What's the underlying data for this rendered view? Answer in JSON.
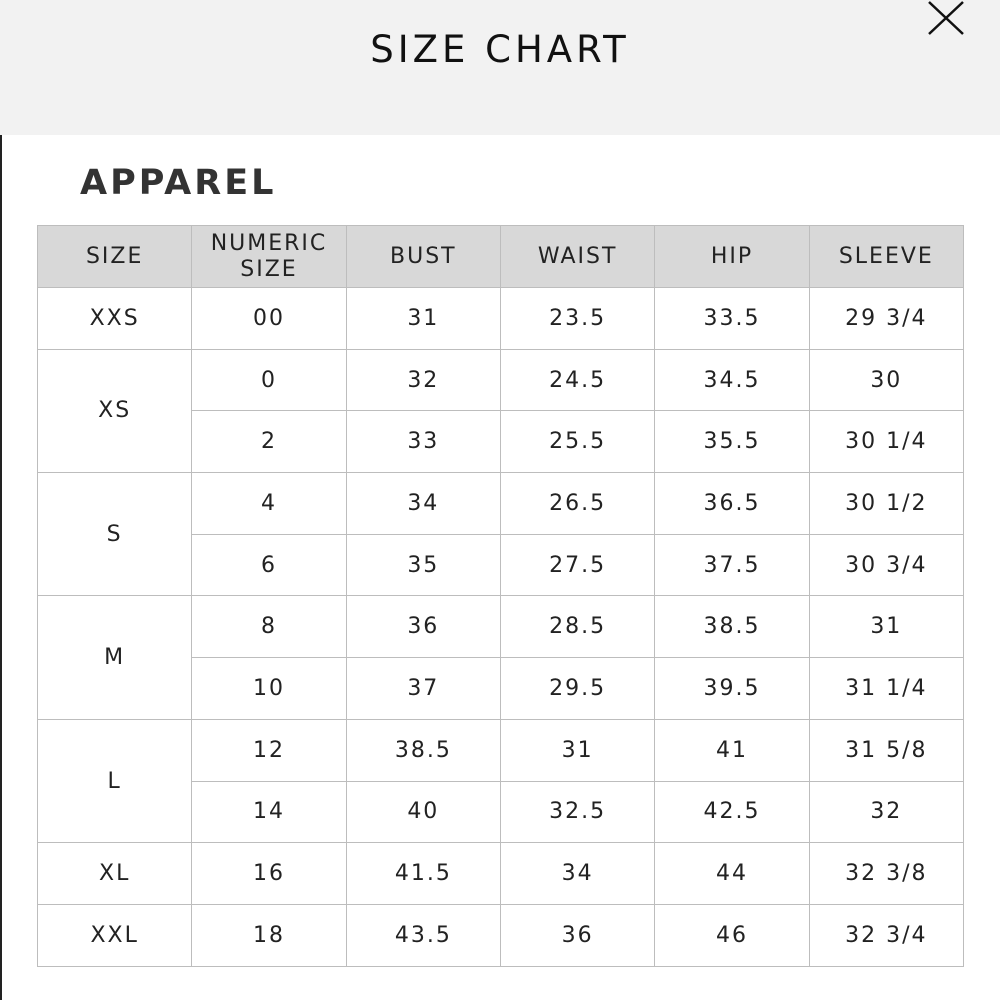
{
  "header": {
    "title": "SIZE CHART",
    "close_icon": "close-x-icon"
  },
  "section": {
    "title": "APPAREL"
  },
  "table": {
    "columns": [
      "SIZE",
      "NUMERIC\nSIZE",
      "BUST",
      "WAIST",
      "HIP",
      "SLEEVE"
    ],
    "groups": [
      {
        "size": "XXS",
        "rows": [
          [
            "00",
            "31",
            "23.5",
            "33.5",
            "29 3/4"
          ]
        ]
      },
      {
        "size": "XS",
        "rows": [
          [
            "0",
            "32",
            "24.5",
            "34.5",
            "30"
          ],
          [
            "2",
            "33",
            "25.5",
            "35.5",
            "30 1/4"
          ]
        ]
      },
      {
        "size": "S",
        "rows": [
          [
            "4",
            "34",
            "26.5",
            "36.5",
            "30 1/2"
          ],
          [
            "6",
            "35",
            "27.5",
            "37.5",
            "30 3/4"
          ]
        ]
      },
      {
        "size": "M",
        "rows": [
          [
            "8",
            "36",
            "28.5",
            "38.5",
            "31"
          ],
          [
            "10",
            "37",
            "29.5",
            "39.5",
            "31 1/4"
          ]
        ]
      },
      {
        "size": "L",
        "rows": [
          [
            "12",
            "38.5",
            "31",
            "41",
            "31 5/8"
          ],
          [
            "14",
            "40",
            "32.5",
            "42.5",
            "32"
          ]
        ]
      },
      {
        "size": "XL",
        "rows": [
          [
            "16",
            "41.5",
            "34",
            "44",
            "32 3/8"
          ]
        ]
      },
      {
        "size": "XXL",
        "rows": [
          [
            "18",
            "43.5",
            "36",
            "46",
            "32 3/4"
          ]
        ]
      }
    ]
  }
}
